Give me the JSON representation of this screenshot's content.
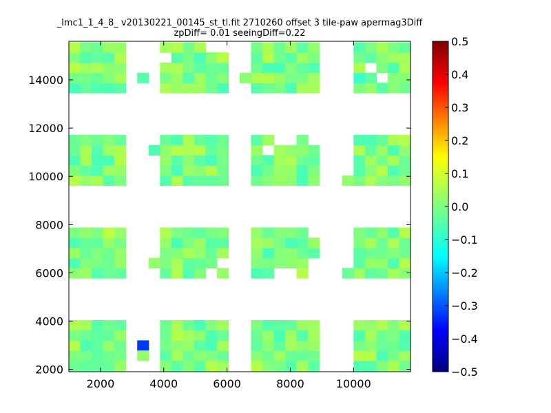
{
  "chart_data": {
    "type": "heatmap",
    "title_line1": "_lmc1_1_4_8_ v20130221_00145_st_tl.fit 2710260 offset 3 tile-paw apermag3Diff",
    "title_line2": "zpDiff= 0.01 seeingDiff=0.22",
    "colormap": "jet",
    "grid": false,
    "xlim": [
      1000,
      11800
    ],
    "ylim": [
      1900,
      15600
    ],
    "x_ticks": [
      "2000",
      "4000",
      "6000",
      "8000",
      "10000"
    ],
    "x_tick_values": [
      2000,
      4000,
      6000,
      8000,
      10000
    ],
    "y_ticks": [
      "2000",
      "4000",
      "6000",
      "8000",
      "10000",
      "12000",
      "14000"
    ],
    "y_tick_values": [
      2000,
      4000,
      6000,
      8000,
      10000,
      12000,
      14000
    ],
    "colorbar": {
      "range": [
        -0.5,
        0.5
      ],
      "ticks": [
        "0.5",
        "0.4",
        "0.3",
        "0.2",
        "0.1",
        "0.0",
        "−0.1",
        "−0.2",
        "−0.3",
        "−0.4",
        "−0.5"
      ],
      "tick_values": [
        0.5,
        0.4,
        0.3,
        0.2,
        0.1,
        0.0,
        -0.1,
        -0.2,
        -0.3,
        -0.4,
        -0.5
      ]
    },
    "cell_size": [
      360,
      420
    ],
    "x_edges": [
      1000,
      1360,
      1720,
      2080,
      2440,
      2800,
      3160,
      3520,
      3880,
      4240,
      4600,
      4960,
      5320,
      5680,
      6040,
      6400,
      6760,
      7120,
      7480,
      7840,
      8200,
      8560,
      8920,
      9280,
      9640,
      10000,
      10360,
      10720,
      11080,
      11440,
      11800
    ],
    "tile_rows_y": [
      [
        13460,
        13880,
        14300,
        14720,
        15140
      ],
      [
        9620,
        10040,
        10460,
        10880,
        11300
      ],
      [
        5780,
        6200,
        6620,
        7040,
        7460
      ],
      [
        1940,
        2360,
        2780,
        3200,
        3620
      ]
    ],
    "tile_cols": [
      [
        1000,
        1360,
        1720,
        2080,
        2440
      ],
      [
        3880,
        4240,
        4600,
        4960,
        5320,
        5680
      ],
      [
        6760,
        7120,
        7480,
        7840,
        8200,
        8560
      ],
      [
        10000,
        10360,
        10720,
        11080,
        11440
      ]
    ],
    "special_cells": [
      {
        "x": 3160,
        "y": 2780,
        "value": -0.32
      },
      {
        "x": 3160,
        "y": 2360,
        "value": 0.02
      },
      {
        "x": 3160,
        "y": 13880,
        "value": -0.04
      },
      {
        "x": 3520,
        "y": 10880,
        "value": -0.05
      },
      {
        "x": 3520,
        "y": 6200,
        "value": 0.02
      },
      {
        "x": 6400,
        "y": 13880,
        "value": 0.01
      },
      {
        "x": 9640,
        "y": 9620,
        "value": 0.02
      },
      {
        "x": 9640,
        "y": 5780,
        "value": -0.02
      }
    ],
    "notable_values": [
      {
        "x": 2080,
        "y": 7460,
        "value": 0.06
      },
      {
        "x": 10000,
        "y": 13880,
        "value": -0.07
      }
    ]
  }
}
